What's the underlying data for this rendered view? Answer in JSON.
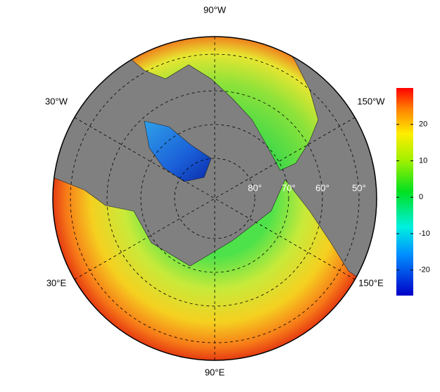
{
  "map": {
    "longitude_labels": [
      "90°W",
      "30°W",
      "150°W",
      "30°E",
      "150°E",
      "90°E"
    ],
    "latitude_labels": [
      "80°",
      "70°",
      "60°",
      "50°"
    ]
  },
  "colorbar": {
    "lim": [
      -27,
      30
    ],
    "ticks": [
      -20,
      -10,
      0,
      10,
      20
    ]
  }
}
